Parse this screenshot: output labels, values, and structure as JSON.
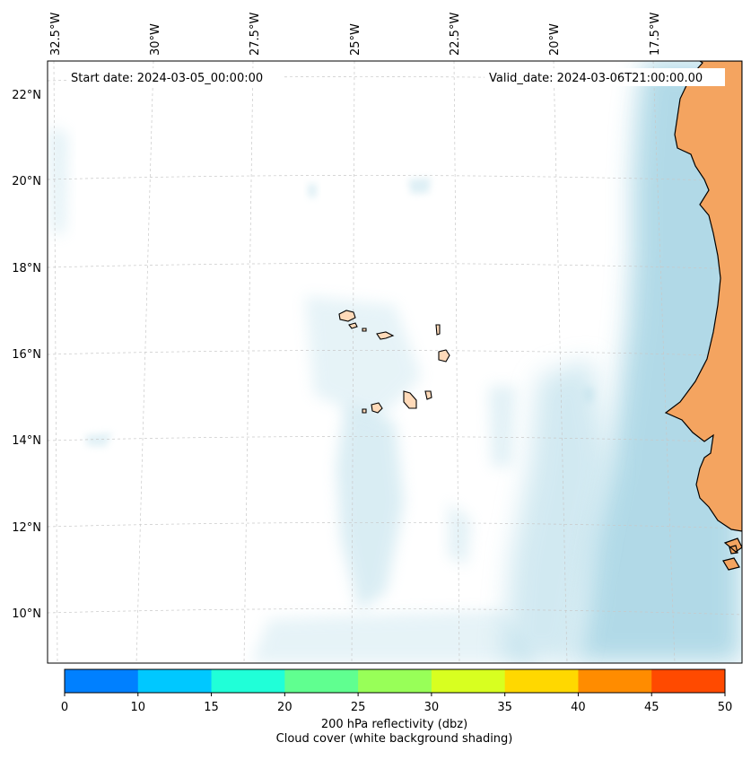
{
  "map": {
    "start_date_label": "Start date: 2024-03-05_00:00:00",
    "valid_date_label": "Valid_date: 2024-03-06T21:00:00.00",
    "lon_labels": [
      "32.5°W",
      "30°W",
      "27.5°W",
      "25°W",
      "22.5°W",
      "20°W",
      "17.5°W"
    ],
    "lat_labels": [
      "22°N",
      "20°N",
      "18°N",
      "16°N",
      "14°N",
      "12°N",
      "10°N"
    ],
    "land_color": "#f4a460",
    "island_color": "#ffdab9",
    "cloud_color": "#add8e6",
    "gridlines": true
  },
  "colorbar": {
    "ticks": [
      "0",
      "10",
      "15",
      "20",
      "25",
      "30",
      "35",
      "40",
      "45",
      "50"
    ],
    "colors": [
      "#0080ff",
      "#00c8ff",
      "#20ffd8",
      "#60ff90",
      "#98ff58",
      "#d8ff20",
      "#ffd800",
      "#ff8c00",
      "#ff4a00"
    ],
    "label": "200 hPa reflectivity (dbz)",
    "sublabel": "Cloud cover (white background shading)"
  }
}
